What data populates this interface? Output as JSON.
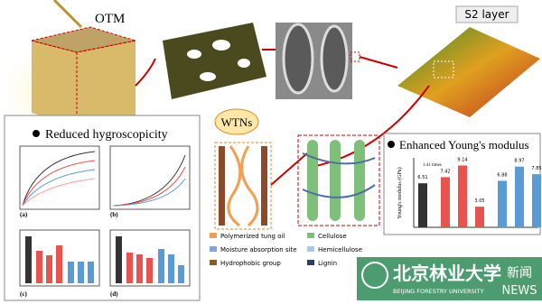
{
  "top": {
    "otm_label": "OTM",
    "s2_label": "S2 layer"
  },
  "hygroscopicity_panel": {
    "title": "Reduced hygroscopicity",
    "subplot_labels": [
      "(a)",
      "(b)",
      "(c)",
      "(d)"
    ]
  },
  "wtn_panel": {
    "title": "WTNs",
    "legend": [
      "Polymerized tung oil",
      "Moisture absorption site",
      "Hydrophobic group",
      "Cellulose",
      "Hemicellulose",
      "Lignin"
    ]
  },
  "modulus_panel": {
    "title": "Enhanced Young's modulus",
    "y_label": "Young's modulus (GPa)",
    "annotation": "1.41 times",
    "values": [
      6.51,
      7.42,
      9.14,
      3.05,
      6.88,
      8.97,
      7.85
    ],
    "colors": [
      "#333333",
      "#e8534f",
      "#e8534f",
      "#e8534f",
      "#5b9bd5",
      "#5b9bd5",
      "#5b9bd5"
    ]
  },
  "logo": {
    "chinese": "北京林业大学",
    "english": "BEIJING FORESTRY UNIVERSITY",
    "news_cn": "新闻",
    "news_en": "NEWS"
  }
}
